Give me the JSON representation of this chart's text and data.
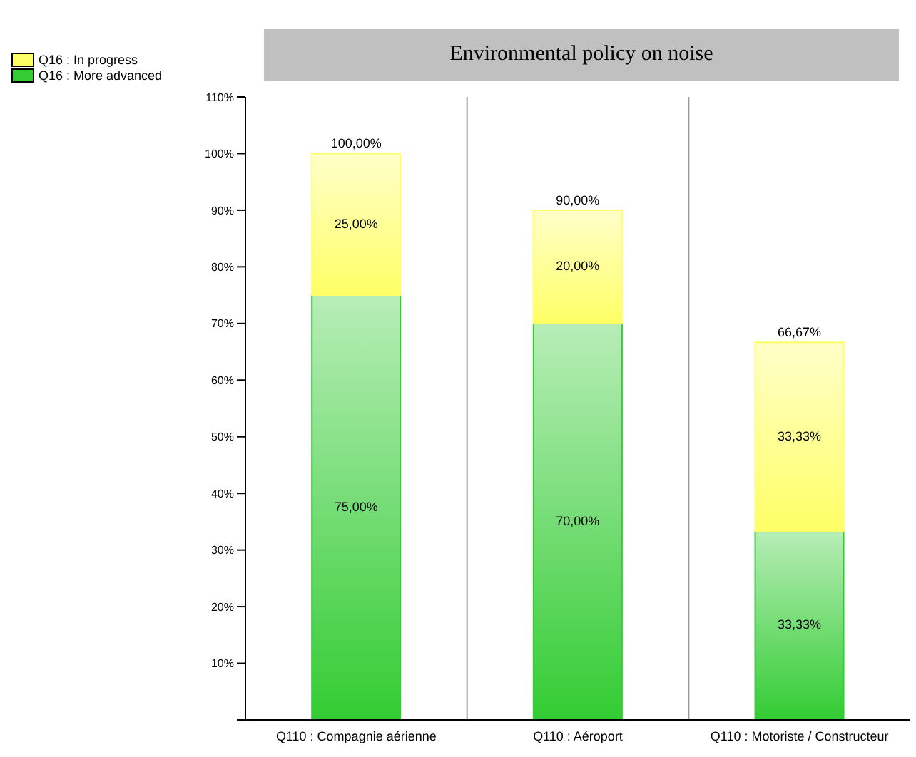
{
  "chart_data": {
    "type": "bar",
    "title": "Environmental policy on noise",
    "categories": [
      "Q110 : Compagnie aérienne",
      "Q110 : Aéroport",
      "Q110 : Motoriste / Constructeur"
    ],
    "series": [
      {
        "name": "Q16 : More advanced",
        "color": "#33cc33",
        "values": [
          75,
          70,
          33.33
        ],
        "value_labels": [
          "75,00%",
          "70,00%",
          "33,33%"
        ]
      },
      {
        "name": "Q16 : In progress",
        "color": "#ffff66",
        "values": [
          25,
          20,
          33.33
        ],
        "value_labels": [
          "25,00%",
          "20,00%",
          "33,33%"
        ]
      }
    ],
    "stacked": true,
    "totals": [
      "100,00%",
      "90,00%",
      "66,67%"
    ],
    "ylim": [
      0,
      110
    ],
    "yticks": [
      {
        "value": 0,
        "label": null
      },
      {
        "value": 10,
        "label": "10%"
      },
      {
        "value": 20,
        "label": "20%"
      },
      {
        "value": 30,
        "label": "30%"
      },
      {
        "value": 40,
        "label": "40%"
      },
      {
        "value": 50,
        "label": "50%"
      },
      {
        "value": 60,
        "label": "60%"
      },
      {
        "value": 70,
        "label": "70%"
      },
      {
        "value": 80,
        "label": "80%"
      },
      {
        "value": 90,
        "label": "90%"
      },
      {
        "value": 100,
        "label": "100%"
      },
      {
        "value": 110,
        "label": "110%"
      }
    ],
    "grid": "x",
    "legend": "top left"
  }
}
